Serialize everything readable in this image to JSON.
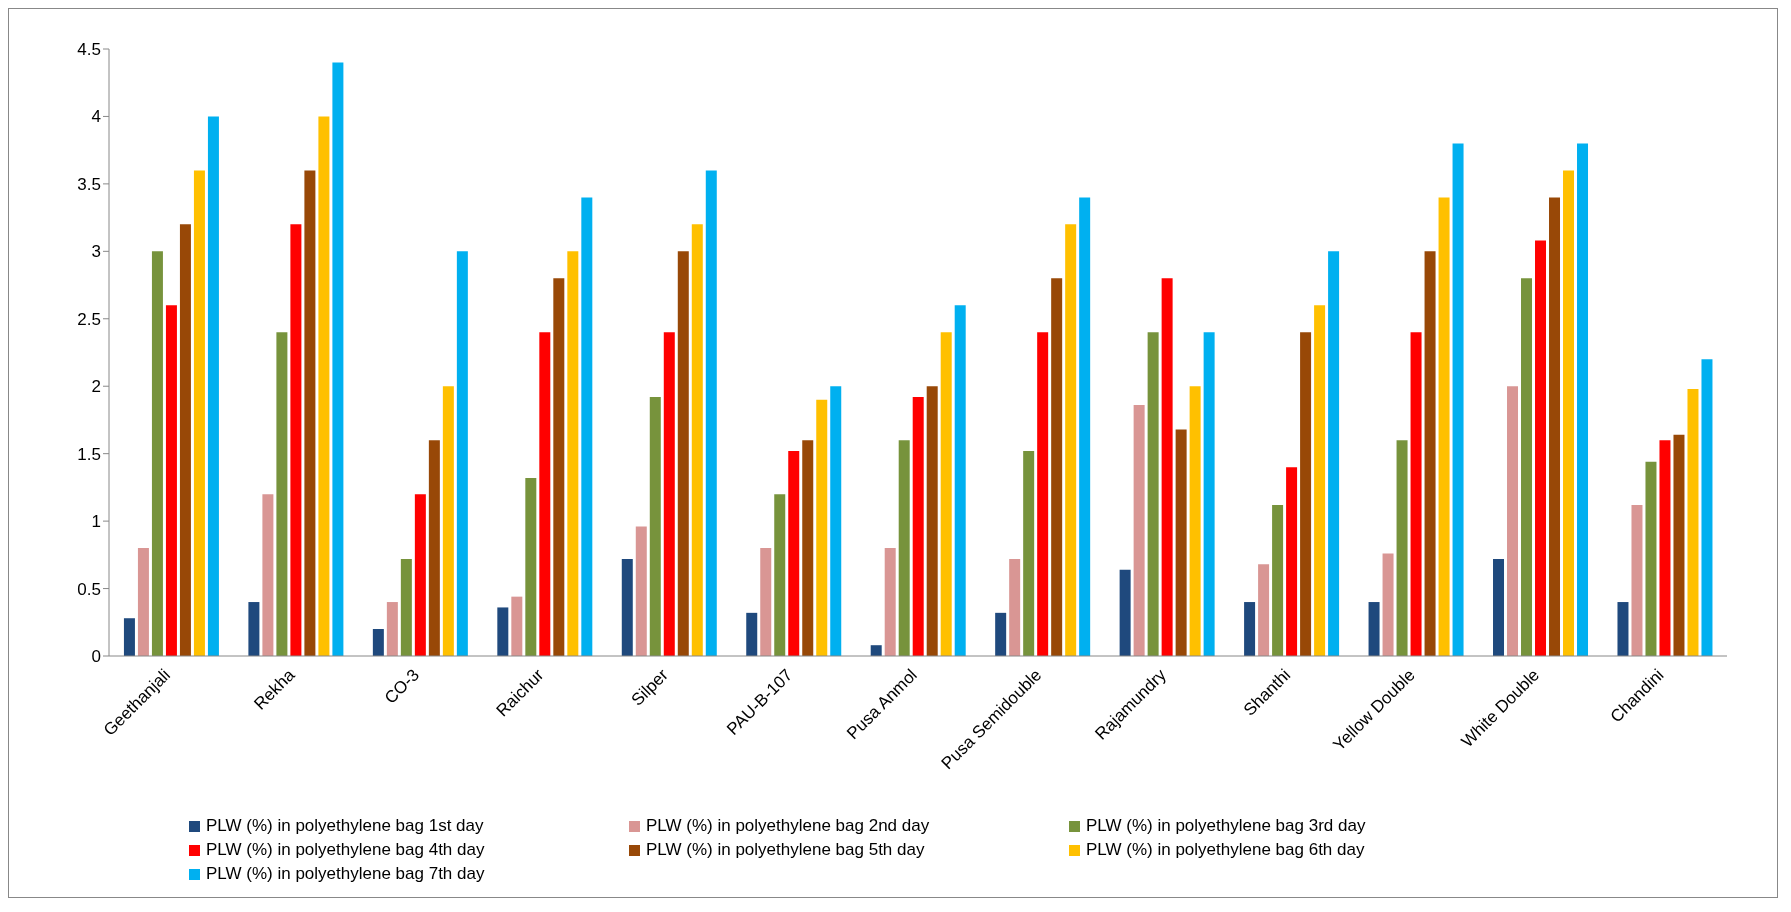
{
  "chart_data": {
    "type": "bar",
    "categories": [
      "Geethanjali",
      "Rekha",
      "CO-3",
      "Raichur",
      "Silper",
      "PAU-B-107",
      "Pusa Anmol",
      "Pusa Semidouble",
      "Rajamundry",
      "Shanthi",
      "Yellow Double",
      "White Double",
      "Chandini"
    ],
    "series": [
      {
        "name": "PLW (%) in polyethylene bag 1st day",
        "color": "#1f497d",
        "values": [
          0.28,
          0.4,
          0.2,
          0.36,
          0.72,
          0.32,
          0.08,
          0.32,
          0.64,
          0.4,
          0.4,
          0.72,
          0.4
        ]
      },
      {
        "name": "PLW (%) in polyethylene bag 2nd day",
        "color": "#d99694",
        "values": [
          0.8,
          1.2,
          0.4,
          0.44,
          0.96,
          0.8,
          0.8,
          0.72,
          1.86,
          0.68,
          0.76,
          2.0,
          1.12
        ]
      },
      {
        "name": "PLW (%) in polyethylene bag 3rd day",
        "color": "#77933c",
        "values": [
          3.0,
          2.4,
          0.72,
          1.32,
          1.92,
          1.2,
          1.6,
          1.52,
          2.4,
          1.12,
          1.6,
          2.8,
          1.44
        ]
      },
      {
        "name": "PLW (%) in polyethylene bag 4th day",
        "color": "#ff0000",
        "values": [
          2.6,
          3.2,
          1.2,
          2.4,
          2.4,
          1.52,
          1.92,
          2.4,
          2.8,
          1.4,
          2.4,
          3.08,
          1.6
        ]
      },
      {
        "name": "PLW (%) in polyethylene bag 5th day",
        "color": "#984807",
        "values": [
          3.2,
          3.6,
          1.6,
          2.8,
          3.0,
          1.6,
          2.0,
          2.8,
          1.68,
          2.4,
          3.0,
          3.4,
          1.64
        ]
      },
      {
        "name": "PLW (%) in polyethylene bag 6th day",
        "color": "#ffc000",
        "values": [
          3.6,
          4.0,
          2.0,
          3.0,
          3.2,
          1.9,
          2.4,
          3.2,
          2.0,
          2.6,
          3.4,
          3.6,
          1.98
        ]
      },
      {
        "name": "PLW (%) in polyethylene bag 7th day",
        "color": "#00b0f0",
        "values": [
          4.0,
          4.4,
          3.0,
          3.4,
          3.6,
          2.0,
          2.6,
          3.4,
          2.4,
          3.0,
          3.8,
          3.8,
          2.2
        ]
      }
    ],
    "ylim": [
      0,
      4.5
    ],
    "yticks": [
      0,
      0.5,
      1,
      1.5,
      2,
      2.5,
      3,
      3.5,
      4,
      4.5
    ],
    "legend": "bottom"
  }
}
